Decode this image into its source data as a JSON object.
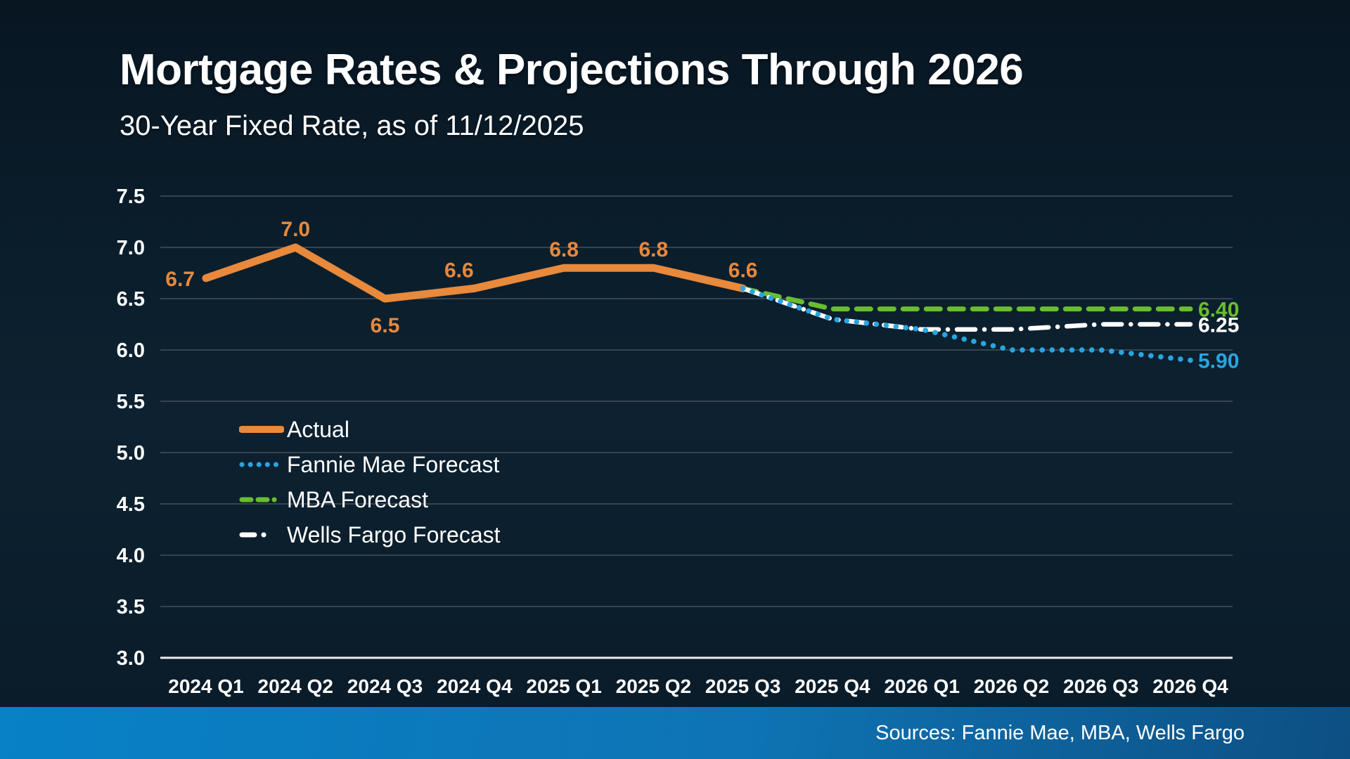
{
  "header": {
    "title": "Mortgage Rates & Projections Through 2026",
    "subtitle": "30-Year Fixed Rate, as of 11/12/2025"
  },
  "footer": {
    "sources": "Sources: Fannie Mae, MBA, Wells Fargo",
    "bar_color_left": "#0881C7",
    "bar_color_right": "#0D4F83"
  },
  "colors": {
    "background": "#0B1E2C",
    "gridline": "#43505B",
    "axis_line": "#E9EEF3",
    "text": "#FFFFFF"
  },
  "chart_data": {
    "type": "line",
    "title": "Mortgage Rates & Projections Through 2026",
    "subtitle": "30-Year Fixed Rate, as of 11/12/2025",
    "categories": [
      "2024 Q1",
      "2024 Q2",
      "2024 Q3",
      "2024 Q4",
      "2025 Q1",
      "2025 Q2",
      "2025 Q3",
      "2025 Q4",
      "2026 Q1",
      "2026 Q2",
      "2026 Q3",
      "2026 Q4"
    ],
    "ylim": [
      3.0,
      7.5
    ],
    "ytick_labels": [
      "7.5",
      "7.0",
      "6.5",
      "6.0",
      "5.5",
      "5.0",
      "4.5",
      "4.0",
      "3.5",
      "3.0"
    ],
    "grid": true,
    "legend_position": "inside-left",
    "series": [
      {
        "name": "Actual",
        "color": "#E8893C",
        "style": "solid",
        "start_index": 0,
        "values": [
          6.7,
          7.0,
          6.5,
          6.6,
          6.8,
          6.8,
          6.6
        ],
        "point_labels": [
          "6.7",
          "7.0",
          "6.5",
          "6.6",
          "6.8",
          "6.8",
          "6.6"
        ],
        "label_placement": [
          "left",
          "above",
          "below",
          "above-left",
          "above",
          "above",
          "above"
        ]
      },
      {
        "name": "Fannie Mae Forecast",
        "color": "#2AA4E0",
        "style": "dotted",
        "start_index": 6,
        "values": [
          6.6,
          6.3,
          6.2,
          6.0,
          6.0,
          5.9
        ],
        "end_label": "5.90"
      },
      {
        "name": "MBA Forecast",
        "color": "#69BE2E",
        "style": "dashed",
        "start_index": 6,
        "values": [
          6.6,
          6.4,
          6.4,
          6.4,
          6.4,
          6.4
        ],
        "end_label": "6.40"
      },
      {
        "name": "Wells Fargo Forecast",
        "color": "#FFFFFF",
        "style": "dashdot",
        "start_index": 6,
        "values": [
          6.6,
          6.3,
          6.2,
          6.2,
          6.25,
          6.25
        ],
        "end_label": "6.25"
      }
    ]
  }
}
